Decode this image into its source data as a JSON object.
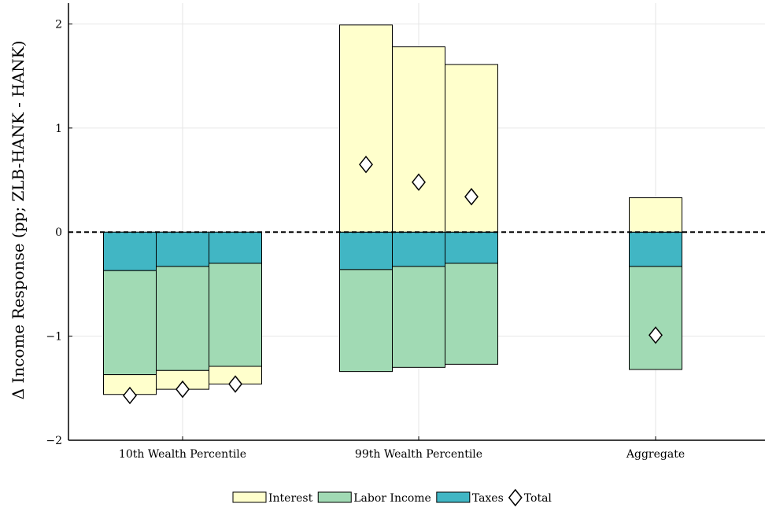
{
  "chart_data": {
    "type": "bar",
    "stacked": true,
    "ylabel": "Δ Income Response (pp; ZLB-HANK - HANK)",
    "ylim": [
      -2,
      2.2
    ],
    "yticks": [
      {
        "value": -2,
        "label": "−2"
      },
      {
        "value": -1,
        "label": "−1"
      },
      {
        "value": 0,
        "label": "0"
      },
      {
        "value": 1,
        "label": "1"
      },
      {
        "value": 2,
        "label": "2"
      }
    ],
    "grid": true,
    "zero_line": "dashed",
    "legend_position": "bottom-center",
    "groups": [
      {
        "label": "10th Wealth Percentile",
        "bars": [
          {
            "taxes": -0.37,
            "labor_income": -1.0,
            "interest": -0.19,
            "total": -1.57
          },
          {
            "taxes": -0.33,
            "labor_income": -1.0,
            "interest": -0.18,
            "total": -1.51
          },
          {
            "taxes": -0.3,
            "labor_income": -0.99,
            "interest": -0.17,
            "total": -1.46
          }
        ]
      },
      {
        "label": "99th Wealth Percentile",
        "bars": [
          {
            "taxes": -0.36,
            "labor_income": -0.98,
            "interest": 1.99,
            "total": 0.65
          },
          {
            "taxes": -0.33,
            "labor_income": -0.97,
            "interest": 1.78,
            "total": 0.48
          },
          {
            "taxes": -0.3,
            "labor_income": -0.97,
            "interest": 1.61,
            "total": 0.34
          }
        ]
      },
      {
        "label": "Aggregate",
        "bars": [
          {
            "taxes": -0.33,
            "labor_income": -0.99,
            "interest": 0.33,
            "total": -0.99
          }
        ]
      }
    ],
    "series": [
      {
        "key": "interest",
        "name": "Interest",
        "color": "#ffffcc"
      },
      {
        "key": "labor_income",
        "name": "Labor Income",
        "color": "#a1dab4"
      },
      {
        "key": "taxes",
        "name": "Taxes",
        "color": "#41b6c4"
      }
    ],
    "total_marker": {
      "key": "total",
      "name": "Total",
      "shape": "diamond"
    }
  }
}
